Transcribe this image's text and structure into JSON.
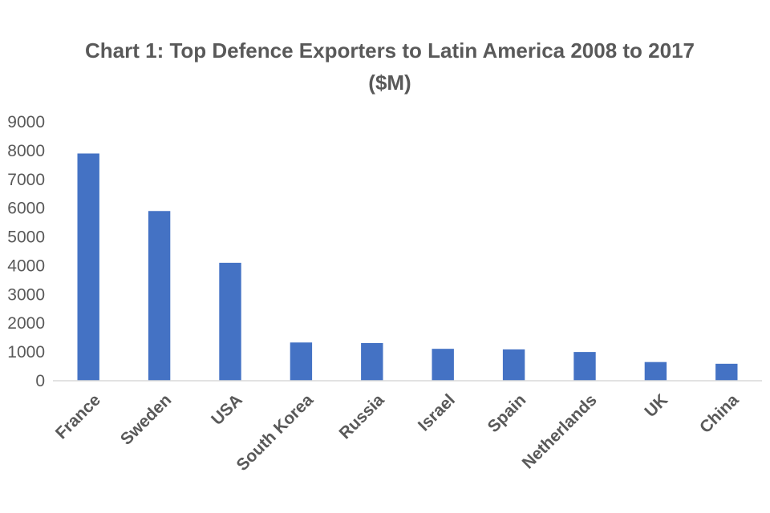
{
  "chart_data": {
    "type": "bar",
    "title": "Chart 1: Top Defence Exporters to Latin America 2008 to 2017 ($M)",
    "title_lines": [
      "Chart 1: Top Defence Exporters to Latin America 2008 to 2017",
      "($M)"
    ],
    "xlabel": "",
    "ylabel": "",
    "categories": [
      "France",
      "Sweden",
      "USA",
      "South Korea",
      "Russia",
      "Israel",
      "Spain",
      "Netherlands",
      "UK",
      "China"
    ],
    "values": [
      7900,
      5900,
      4100,
      1330,
      1310,
      1110,
      1090,
      1000,
      650,
      590
    ],
    "ylim": [
      0,
      9000
    ],
    "yticks": [
      0,
      1000,
      2000,
      3000,
      4000,
      5000,
      6000,
      7000,
      8000,
      9000
    ],
    "grid": false,
    "legend": "none",
    "bar_color": "#4472c4",
    "axis_color": "#d9d9d9",
    "text_color": "#595959"
  }
}
